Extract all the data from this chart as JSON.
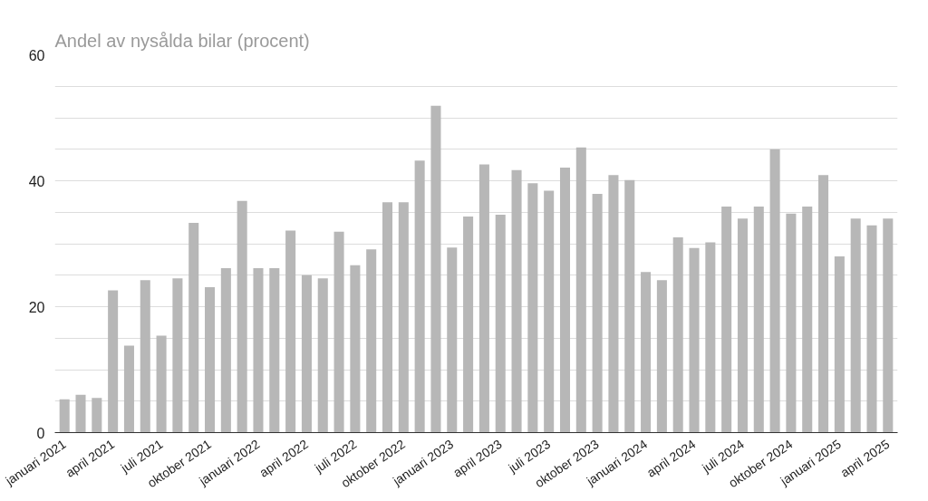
{
  "chart_data": {
    "type": "bar",
    "title": "Andel av nysålda bilar (procent)",
    "categories": [
      "januari 2021",
      null,
      null,
      "april 2021",
      null,
      null,
      "juli 2021",
      null,
      null,
      "oktober 2021",
      null,
      null,
      "januari 2022",
      null,
      null,
      "april 2022",
      null,
      null,
      "juli 2022",
      null,
      null,
      "oktober 2022",
      null,
      null,
      "januari 2023",
      null,
      null,
      "april 2023",
      null,
      null,
      "juli 2023",
      null,
      null,
      "oktober 2023",
      null,
      null,
      "januari 2024",
      null,
      null,
      "april 2024",
      null,
      null,
      "juli 2024",
      null,
      null,
      "oktober 2024",
      null,
      null,
      "januari 2025",
      null,
      null,
      "april 2025"
    ],
    "values": [
      5.3,
      6.0,
      5.5,
      22.6,
      13.8,
      24.2,
      15.4,
      24.5,
      33.3,
      23.1,
      26.1,
      36.8,
      26.1,
      26.1,
      32.1,
      25.0,
      24.5,
      31.9,
      26.6,
      29.1,
      36.6,
      36.6,
      43.2,
      51.9,
      29.4,
      34.3,
      42.6,
      34.6,
      41.7,
      39.6,
      38.4,
      42.1,
      45.3,
      37.9,
      40.9,
      40.1,
      25.5,
      24.2,
      31.0,
      29.3,
      30.2,
      35.9,
      34.0,
      35.9,
      45.0,
      34.8,
      35.9,
      40.9,
      28.0,
      34.0,
      32.9,
      34.0
    ],
    "color": "#b7b7b7",
    "ylim": [
      0,
      60
    ],
    "yticks": [
      0,
      {
        "value": 5,
        "label": null
      },
      {
        "value": 10,
        "label": null
      },
      {
        "value": 15,
        "label": null
      },
      20,
      {
        "value": 25,
        "label": null
      },
      {
        "value": 30,
        "label": null
      },
      {
        "value": 35,
        "label": null
      },
      40,
      {
        "value": 45,
        "label": null
      },
      {
        "value": 50,
        "label": null
      },
      {
        "value": 55,
        "label": null
      },
      60
    ],
    "grid": "y"
  }
}
